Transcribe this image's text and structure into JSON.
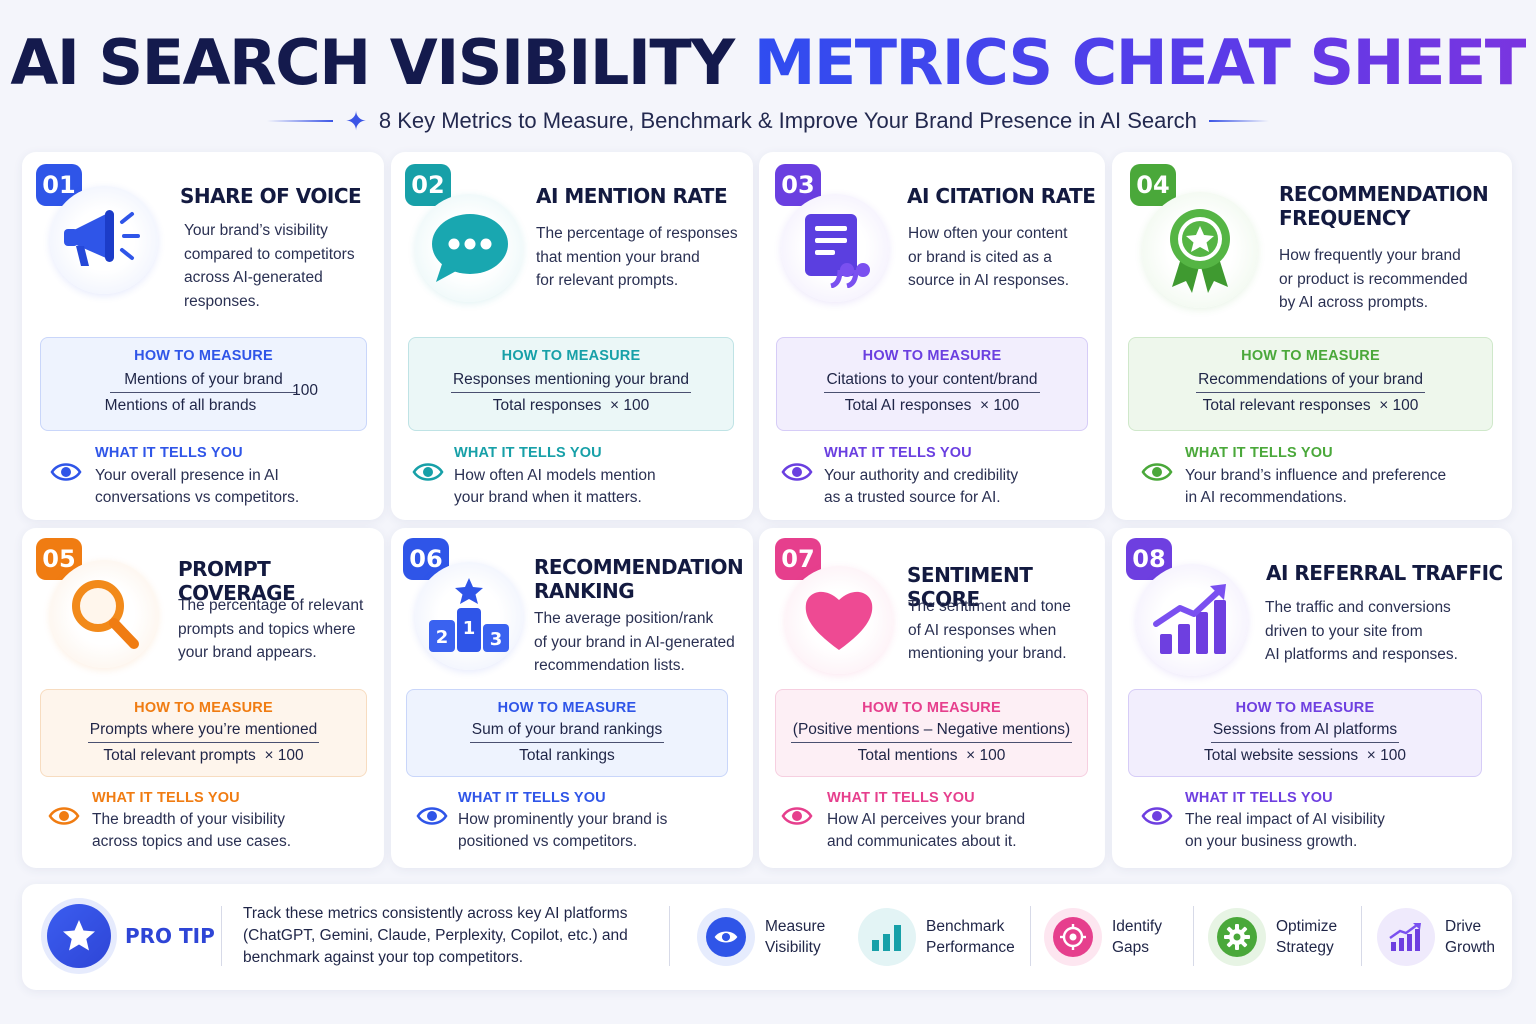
{
  "header": {
    "title_part1": "AI SEARCH VISIBILITY ",
    "title_part2": "METRICS CHEAT SHEET",
    "subtitle": "8 Key Metrics to Measure, Benchmark & Improve Your Brand Presence in AI Search"
  },
  "colors": {
    "blue": "#2f55e8",
    "teal": "#17a0a8",
    "purple": "#6a3fe0",
    "green": "#4aa83a",
    "orange": "#f07c12",
    "indigo": "#2f55e8",
    "pink": "#e63f8d",
    "violet": "#6e3fe0"
  },
  "cards": [
    {
      "number": "01",
      "title_line1": "SHARE OF VOICE",
      "title_line2": "",
      "icon": "megaphone-icon",
      "desc_lines": [
        "Your brand’s visibility",
        "compared to competitors",
        "across AI-generated",
        "responses."
      ],
      "measure_label": "HOW TO MEASURE",
      "numerator": "Mentions of your brand",
      "denominator": "Mentions of all brands",
      "multiplier": "× 100",
      "tells_label": "WHAT IT TELLS YOU",
      "tells_lines": [
        "Your overall presence in AI",
        "conversations vs competitors."
      ]
    },
    {
      "number": "02",
      "title_line1": "AI MENTION RATE",
      "title_line2": "",
      "icon": "chat-bubble-icon",
      "desc_lines": [
        "The percentage of responses",
        "that mention your brand",
        "for relevant prompts."
      ],
      "measure_label": "HOW TO MEASURE",
      "numerator": "Responses mentioning your brand",
      "denominator": "Total responses",
      "multiplier": "× 100",
      "tells_label": "WHAT IT TELLS YOU",
      "tells_lines": [
        "How often AI models mention",
        "your brand when it matters."
      ]
    },
    {
      "number": "03",
      "title_line1": "AI CITATION RATE",
      "title_line2": "",
      "icon": "quote-document-icon",
      "desc_lines": [
        "How often your content",
        "or brand is cited as a",
        "source in AI responses."
      ],
      "measure_label": "HOW TO MEASURE",
      "numerator": "Citations to your content/brand",
      "denominator": "Total AI responses",
      "multiplier": "× 100",
      "tells_label": "WHAT IT TELLS YOU",
      "tells_lines": [
        "Your authority and credibility",
        "as a trusted source for AI."
      ]
    },
    {
      "number": "04",
      "title_line1": "RECOMMENDATION",
      "title_line2": "FREQUENCY",
      "icon": "award-ribbon-icon",
      "desc_lines": [
        "How frequently your brand",
        "or product is recommended",
        "by AI across prompts."
      ],
      "measure_label": "HOW TO MEASURE",
      "numerator": "Recommendations of your brand",
      "denominator": "Total relevant responses",
      "multiplier": "× 100",
      "tells_label": "WHAT IT TELLS YOU",
      "tells_lines": [
        "Your brand’s influence and preference",
        "in AI recommendations."
      ]
    },
    {
      "number": "05",
      "title_line1": "PROMPT COVERAGE",
      "title_line2": "",
      "icon": "magnifier-icon",
      "desc_lines": [
        "The percentage of relevant",
        "prompts and topics where",
        "your brand appears."
      ],
      "measure_label": "HOW TO MEASURE",
      "numerator": "Prompts where you’re mentioned",
      "denominator": "Total relevant prompts",
      "multiplier": "× 100",
      "tells_label": "WHAT IT TELLS YOU",
      "tells_lines": [
        "The breadth of your visibility",
        "across topics and use cases."
      ]
    },
    {
      "number": "06",
      "title_line1": "RECOMMENDATION",
      "title_line2": "RANKING",
      "icon": "podium-icon",
      "desc_lines": [
        "The average position/rank",
        "of your brand in AI-generated",
        "recommendation lists."
      ],
      "measure_label": "HOW TO MEASURE",
      "numerator": "Sum of your brand rankings",
      "denominator": "Total rankings",
      "multiplier": "",
      "tells_label": "WHAT IT TELLS YOU",
      "tells_lines": [
        "How prominently your brand is",
        "positioned vs competitors."
      ]
    },
    {
      "number": "07",
      "title_line1": "SENTIMENT SCORE",
      "title_line2": "",
      "icon": "heart-icon",
      "desc_lines": [
        "The sentiment and tone",
        "of AI responses when",
        "mentioning your brand."
      ],
      "measure_label": "HOW TO MEASURE",
      "numerator": "(Positive mentions – Negative mentions)",
      "denominator": "Total mentions",
      "multiplier": "× 100",
      "tells_label": "WHAT IT TELLS YOU",
      "tells_lines": [
        "How AI perceives your brand",
        "and communicates about it."
      ]
    },
    {
      "number": "08",
      "title_line1": "AI REFERRAL TRAFFIC",
      "title_line2": "",
      "icon": "growth-chart-icon",
      "desc_lines": [
        "The traffic and conversions",
        "driven to your site from",
        "AI platforms and responses."
      ],
      "measure_label": "HOW TO MEASURE",
      "numerator": "Sessions from AI platforms",
      "denominator": "Total website sessions",
      "multiplier": "× 100",
      "tells_label": "WHAT IT TELLS YOU",
      "tells_lines": [
        "The real impact of AI visibility",
        "on your business growth."
      ]
    }
  ],
  "pro_tip": {
    "label": "PRO TIP",
    "icon": "star-icon",
    "text_lines": [
      "Track these metrics consistently across key AI platforms",
      "(ChatGPT, Gemini, Claude, Perplexity, Copilot, etc.) and",
      "benchmark against your top competitors."
    ],
    "steps": [
      {
        "line1": "Measure",
        "line2": "Visibility",
        "icon": "eye-icon"
      },
      {
        "line1": "Benchmark",
        "line2": "Performance",
        "icon": "bar-chart-icon"
      },
      {
        "line1": "Identify",
        "line2": "Gaps",
        "icon": "target-icon"
      },
      {
        "line1": "Optimize",
        "line2": "Strategy",
        "icon": "gear-icon"
      },
      {
        "line1": "Drive",
        "line2": "Growth",
        "icon": "growth-arrow-icon"
      }
    ]
  }
}
